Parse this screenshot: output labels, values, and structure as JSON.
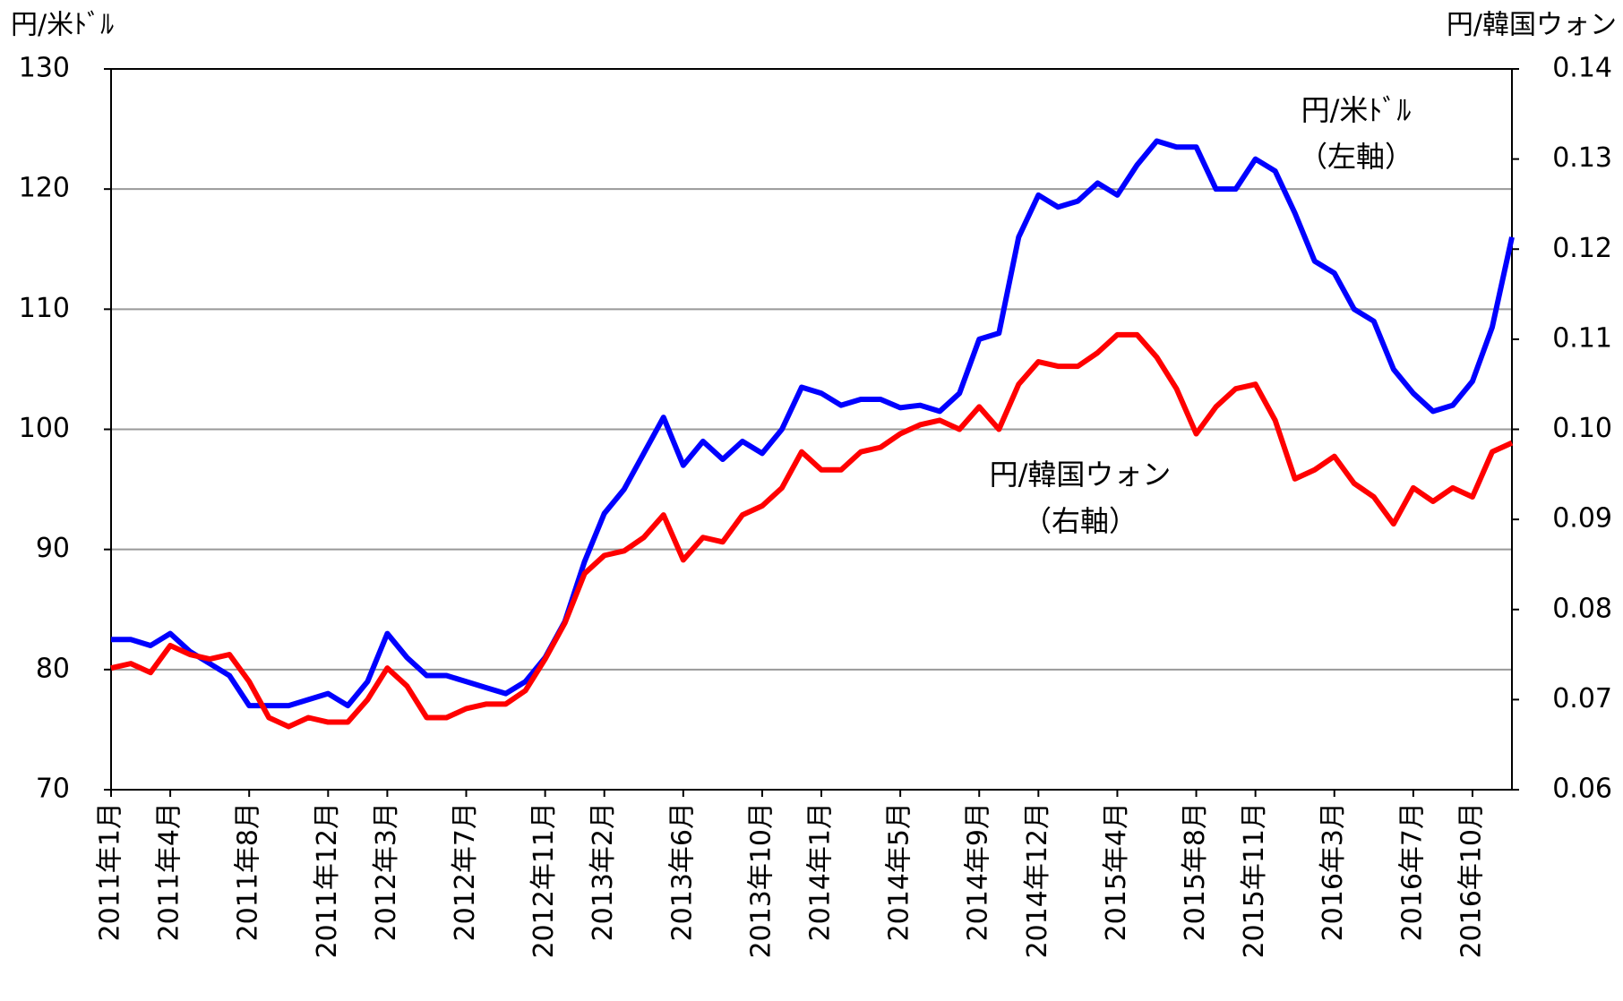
{
  "chart_data": {
    "type": "line",
    "y_label": "円/米ﾄﾞﾙ",
    "y2_label": "円/韓国ウォン",
    "annotations": [
      {
        "lines": [
          "円/米ﾄﾞﾙ",
          "（左軸）"
        ]
      },
      {
        "lines": [
          "円/韓国ウォン",
          "（右軸）"
        ]
      }
    ],
    "categories": [
      "2011年1月",
      null,
      null,
      "2011年4月",
      null,
      null,
      null,
      "2011年8月",
      null,
      null,
      null,
      "2011年12月",
      null,
      null,
      "2012年3月",
      null,
      null,
      null,
      "2012年7月",
      null,
      null,
      null,
      "2012年11月",
      null,
      null,
      "2013年2月",
      null,
      null,
      null,
      "2013年6月",
      null,
      null,
      null,
      "2013年10月",
      null,
      null,
      "2014年1月",
      null,
      null,
      null,
      "2014年5月",
      null,
      null,
      null,
      "2014年9月",
      null,
      null,
      "2014年12月",
      null,
      null,
      null,
      "2015年4月",
      null,
      null,
      null,
      "2015年8月",
      null,
      null,
      "2015年11月",
      null,
      null,
      null,
      "2016年3月",
      null,
      null,
      null,
      "2016年7月",
      null,
      null,
      "2016年10月",
      null,
      null
    ],
    "series": [
      {
        "name": "円/米ﾄﾞﾙ",
        "color": "#0000ff",
        "axis": "y",
        "values": [
          82.5,
          82.5,
          82,
          83,
          81.5,
          80.5,
          79.5,
          77,
          77,
          77,
          77.5,
          78,
          77,
          79,
          83,
          81,
          79.5,
          79.5,
          79,
          78.5,
          78,
          79,
          81,
          84,
          89,
          93,
          95,
          98,
          101,
          97,
          99,
          97.5,
          99,
          98,
          100,
          103.5,
          103,
          102,
          102.5,
          102.5,
          101.8,
          102,
          101.5,
          103,
          107.5,
          108,
          116,
          119.5,
          118.5,
          119,
          120.5,
          119.5,
          122,
          124,
          123.5,
          123.5,
          120,
          120,
          122.5,
          121.5,
          118,
          114,
          113,
          110,
          109,
          105,
          103,
          101.5,
          102,
          104,
          108.5,
          116
        ]
      },
      {
        "name": "円/韓国ウォン",
        "color": "#ff0000",
        "axis": "y2",
        "values": [
          0.0735,
          0.074,
          0.073,
          0.076,
          0.075,
          0.0745,
          0.075,
          0.072,
          0.068,
          0.067,
          0.068,
          0.0675,
          0.0675,
          0.07,
          0.0735,
          0.0715,
          0.068,
          0.068,
          0.069,
          0.0695,
          0.0695,
          0.071,
          0.0745,
          0.0785,
          0.084,
          0.086,
          0.0865,
          0.088,
          0.0905,
          0.0855,
          0.088,
          0.0875,
          0.0905,
          0.0915,
          0.0935,
          0.0975,
          0.0955,
          0.0955,
          0.0975,
          0.098,
          0.0995,
          0.1005,
          0.101,
          0.1,
          0.1025,
          0.1,
          0.105,
          0.1075,
          0.107,
          0.107,
          0.1085,
          0.1105,
          0.1105,
          0.108,
          0.1045,
          0.0995,
          0.1025,
          0.1045,
          0.105,
          0.101,
          0.0945,
          0.0955,
          0.097,
          0.094,
          0.0925,
          0.0895,
          0.0935,
          0.092,
          0.0935,
          0.0925,
          0.0975,
          0.0985
        ]
      }
    ],
    "ylim": [
      70,
      130
    ],
    "yticks": [
      70,
      80,
      90,
      100,
      110,
      120,
      130
    ],
    "y2lim": [
      0.06,
      0.14
    ],
    "y2ticks": [
      0.06,
      0.07,
      0.08,
      0.09,
      {
        "value": 0.1,
        "label": "0.10"
      },
      0.11,
      0.12,
      0.13,
      0.14
    ],
    "grid": true
  }
}
